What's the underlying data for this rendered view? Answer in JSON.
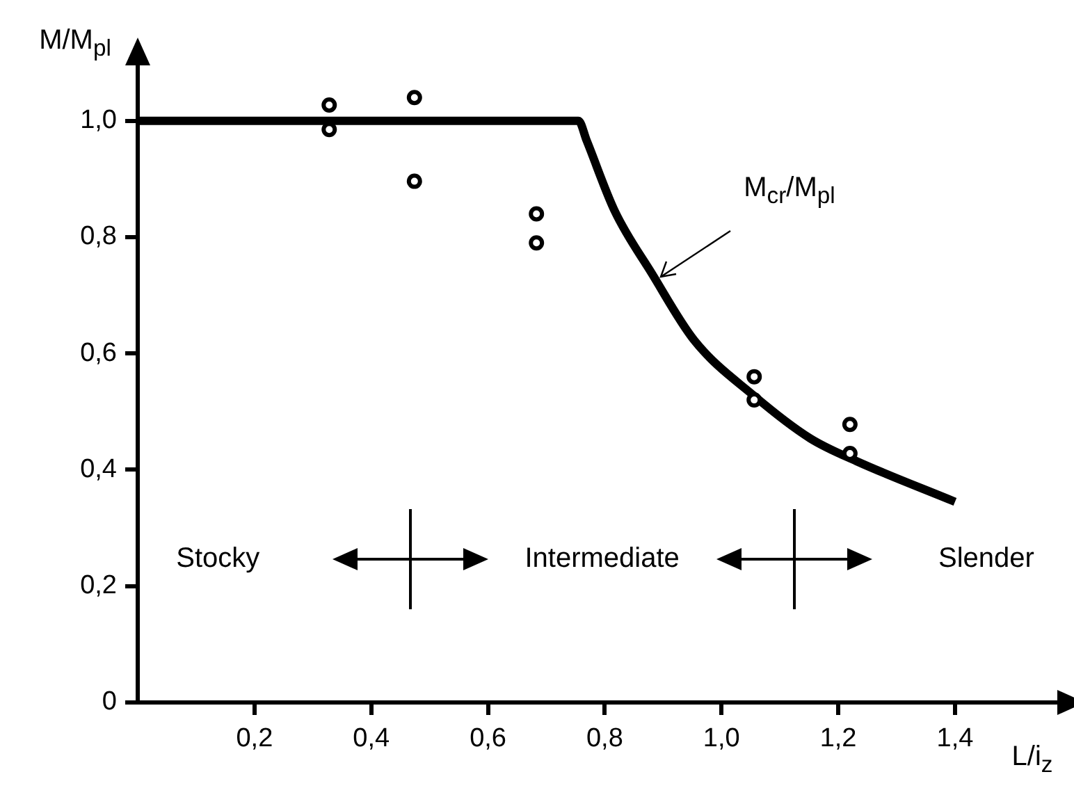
{
  "chart_data": {
    "type": "line",
    "xlabel": "L/i$_{z}$",
    "ylabel": "M/M$_{pl}$",
    "xlim": [
      0,
      1.58
    ],
    "ylim": [
      0,
      1.1
    ],
    "xticks": [
      {
        "value": 0.2,
        "label": "0,2"
      },
      {
        "value": 0.4,
        "label": "0,4"
      },
      {
        "value": 0.6,
        "label": "0,6"
      },
      {
        "value": 0.8,
        "label": "0,8"
      },
      {
        "value": 1.0,
        "label": "1,0"
      },
      {
        "value": 1.2,
        "label": "1,2"
      },
      {
        "value": 1.4,
        "label": "1,4"
      }
    ],
    "yticks": [
      0,
      {
        "value": 0.2,
        "label": "0,2"
      },
      {
        "value": 0.4,
        "label": "0,4"
      },
      {
        "value": 0.6,
        "label": "0,6"
      },
      {
        "value": 0.8,
        "label": "0,8"
      },
      {
        "value": 1.0,
        "label": "1,0"
      }
    ],
    "grid": false,
    "legend": false,
    "series": [
      {
        "type": "line",
        "color": "#000000",
        "marker": "none",
        "x": [
          0,
          0.755,
          0.769,
          0.817,
          0.881,
          0.953,
          1.056,
          1.152,
          1.231,
          1.4
        ],
        "values": [
          1.0,
          1.0,
          0.966,
          0.845,
          0.737,
          0.623,
          0.527,
          0.454,
          0.415,
          0.345
        ]
      },
      {
        "type": "scatter",
        "color": "#000000",
        "marker": "circle",
        "x": [
          0.328,
          0.328,
          0.474,
          0.474,
          0.683,
          0.683,
          1.056,
          1.056,
          1.22,
          1.22
        ],
        "values": [
          1.027,
          0.985,
          1.04,
          0.896,
          0.84,
          0.79,
          0.56,
          0.52,
          0.478,
          0.428
        ]
      }
    ],
    "annotations": [
      {
        "text": "M$_{cr}$/M$_{pl}$",
        "x": 0.89,
        "y": 0.73
      },
      "Stocky",
      "Intermediate",
      "Slender"
    ]
  }
}
